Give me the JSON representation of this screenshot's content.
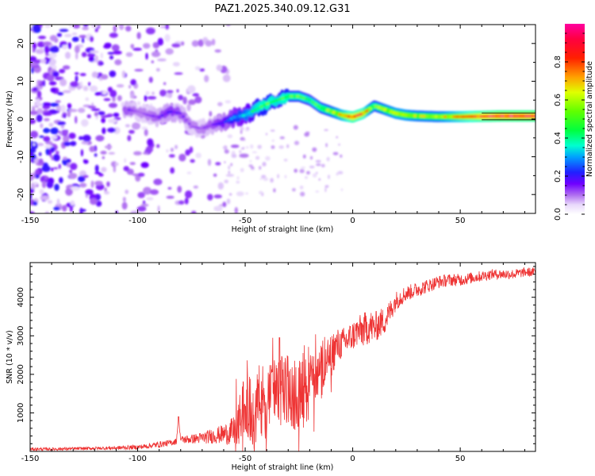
{
  "figure_title": "PAZ1.2025.340.09.12.G31",
  "colorbar": {
    "label": "Normalized spectral amplitude",
    "ticks": [
      "0.0",
      "0.2",
      "0.4",
      "0.6",
      "0.8"
    ],
    "tick_values": [
      0.0,
      0.2,
      0.4,
      0.6,
      0.8
    ],
    "range": [
      0,
      1
    ],
    "colors": [
      "#ffffff",
      "#d9c2f7",
      "#a060f0",
      "#6a00ff",
      "#2020ff",
      "#00c0ff",
      "#00ffc0",
      "#40ff00",
      "#ffff00",
      "#ff8000",
      "#ff0000",
      "#ff0080"
    ]
  },
  "chart_data": [
    {
      "type": "heatmap",
      "name": "spectrogram",
      "xlabel": "Height of straight line (km)",
      "ylabel": "Frequency (Hz)",
      "xlim": [
        -150,
        85
      ],
      "ylim": [
        -25,
        25
      ],
      "x_ticks": [
        -150,
        -100,
        -50,
        0,
        50
      ],
      "y_ticks": [
        -20,
        -10,
        0,
        10,
        20
      ],
      "ridge": {
        "description_points_x": [
          -105,
          -100,
          -95,
          -90,
          -85,
          -80,
          -75,
          -70,
          -65,
          -60,
          -55,
          -50,
          -45,
          -40,
          -35,
          -30,
          -25,
          -20,
          -15,
          -10,
          -5,
          0,
          5,
          10,
          15,
          20,
          25,
          30,
          40,
          50,
          60,
          70,
          85
        ],
        "frequency_hz": [
          2.5,
          2.0,
          1.0,
          0.5,
          2.0,
          1.5,
          -2.0,
          -2.5,
          -1.5,
          -1.0,
          0.5,
          1.0,
          2.5,
          4.0,
          5.0,
          6.0,
          6.0,
          5.0,
          3.0,
          2.0,
          1.0,
          0.5,
          1.5,
          3.5,
          2.5,
          1.5,
          1.0,
          0.8,
          0.6,
          0.6,
          0.7,
          0.8,
          0.8
        ],
        "amplitude": [
          0.15,
          0.12,
          0.12,
          0.15,
          0.18,
          0.15,
          0.12,
          0.12,
          0.15,
          0.2,
          0.3,
          0.35,
          0.45,
          0.5,
          0.45,
          0.5,
          0.5,
          0.45,
          0.5,
          0.55,
          0.7,
          0.85,
          0.8,
          0.5,
          0.6,
          0.65,
          0.65,
          0.6,
          0.6,
          0.75,
          0.85,
          0.9,
          0.9
        ]
      },
      "noise_region_x": [
        -150,
        -60
      ]
    },
    {
      "type": "line",
      "name": "snr",
      "xlabel": "Height of straight line (km)",
      "ylabel": "SNR (10 * v/v)",
      "xlim": [
        -150,
        85
      ],
      "ylim": [
        0,
        4900
      ],
      "x_ticks": [
        -150,
        -100,
        -50,
        0,
        50
      ],
      "y_ticks": [
        1000,
        2000,
        3000,
        4000
      ],
      "series": [
        {
          "name": "SNR",
          "color": "#ee3333",
          "x": [
            -150,
            -140,
            -130,
            -120,
            -110,
            -100,
            -95,
            -90,
            -85,
            -82,
            -81,
            -80,
            -75,
            -70,
            -65,
            -60,
            -55,
            -52,
            -50,
            -48,
            -45,
            -42,
            -40,
            -38,
            -35,
            -33,
            -30,
            -28,
            -25,
            -22,
            -20,
            -18,
            -15,
            -12,
            -10,
            -8,
            -5,
            -2,
            0,
            2,
            5,
            8,
            10,
            12,
            15,
            18,
            20,
            22,
            25,
            30,
            35,
            40,
            45,
            50,
            55,
            60,
            65,
            70,
            75,
            80,
            85
          ],
          "y": [
            60,
            60,
            70,
            80,
            90,
            110,
            140,
            180,
            220,
            260,
            880,
            300,
            320,
            350,
            400,
            450,
            520,
            900,
            1300,
            1100,
            1200,
            1400,
            1350,
            1450,
            1400,
            1600,
            1500,
            1500,
            1500,
            1500,
            1700,
            1900,
            2000,
            2200,
            2500,
            2700,
            2800,
            2900,
            3000,
            3100,
            3150,
            3250,
            3200,
            3300,
            3400,
            3700,
            3900,
            4000,
            4100,
            4200,
            4300,
            4400,
            4450,
            4450,
            4500,
            4550,
            4600,
            4600,
            4600,
            4650,
            4650
          ],
          "noise_amplitude": [
            40,
            40,
            40,
            40,
            50,
            60,
            70,
            80,
            80,
            80,
            0,
            100,
            120,
            150,
            200,
            250,
            400,
            600,
            800,
            900,
            900,
            1000,
            1000,
            1000,
            1000,
            900,
            900,
            900,
            900,
            900,
            800,
            700,
            700,
            600,
            600,
            500,
            400,
            400,
            400,
            400,
            450,
            450,
            400,
            400,
            350,
            300,
            250,
            250,
            200,
            200,
            180,
            170,
            160,
            160,
            150,
            140,
            130,
            130,
            130,
            120,
            120
          ]
        }
      ]
    }
  ]
}
